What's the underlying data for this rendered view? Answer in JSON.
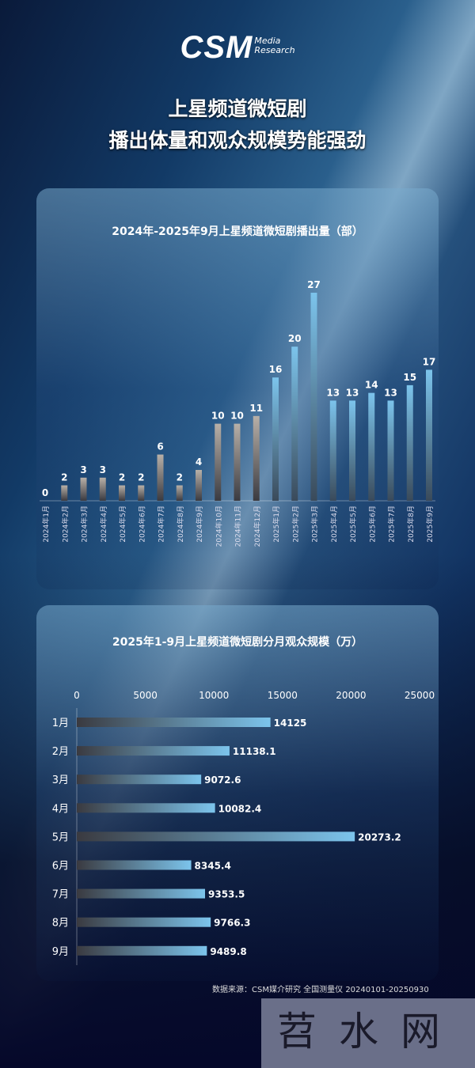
{
  "logo": {
    "main": "CSM",
    "line1": "Media",
    "line2": "Research"
  },
  "title": {
    "line1": "上星频道微短剧",
    "line2": "播出体量和观众规模势能强劲"
  },
  "chart_data": [
    {
      "type": "bar",
      "title": "2024年-2025年9月上星频道微短剧播出量（部）",
      "categories": [
        "2024年1月",
        "2024年2月",
        "2024年3月",
        "2024年4月",
        "2024年5月",
        "2024年6月",
        "2024年7月",
        "2024年8月",
        "2024年9月",
        "2024年10月",
        "2024年11月",
        "2024年12月",
        "2025年1月",
        "2025年2月",
        "2025年3月",
        "2025年4月",
        "2025年5月",
        "2025年6月",
        "2025年7月",
        "2025年8月",
        "2025年9月"
      ],
      "values": [
        0,
        2,
        3,
        3,
        2,
        2,
        6,
        2,
        4,
        10,
        10,
        11,
        16,
        20,
        27,
        13,
        13,
        14,
        13,
        15,
        17
      ],
      "colors": {
        "2024": "#b8b0a8",
        "2025": "#7cc4ec"
      }
    },
    {
      "type": "bar",
      "orientation": "horizontal",
      "title": "2025年1-9月上星频道微短剧分月观众规模（万）",
      "categories": [
        "1月",
        "2月",
        "3月",
        "4月",
        "5月",
        "6月",
        "7月",
        "8月",
        "9月"
      ],
      "values": [
        14125,
        11138.1,
        9072.6,
        10082.4,
        20273.2,
        8345.4,
        9353.5,
        9766.3,
        9489.8
      ],
      "value_labels": [
        "14125",
        "11138.1",
        "9072.6",
        "10082.4",
        "20273.2",
        "8345.4",
        "9353.5",
        "9766.3",
        "9489.8"
      ],
      "xlim": [
        0,
        25000
      ],
      "xticks": [
        0,
        5000,
        10000,
        15000,
        20000,
        25000
      ],
      "color": "#7cc4ec"
    }
  ],
  "footer": "数据来源：CSM媒介研究 全国测量仪 20240101-20250930",
  "watermark": "苕水网"
}
